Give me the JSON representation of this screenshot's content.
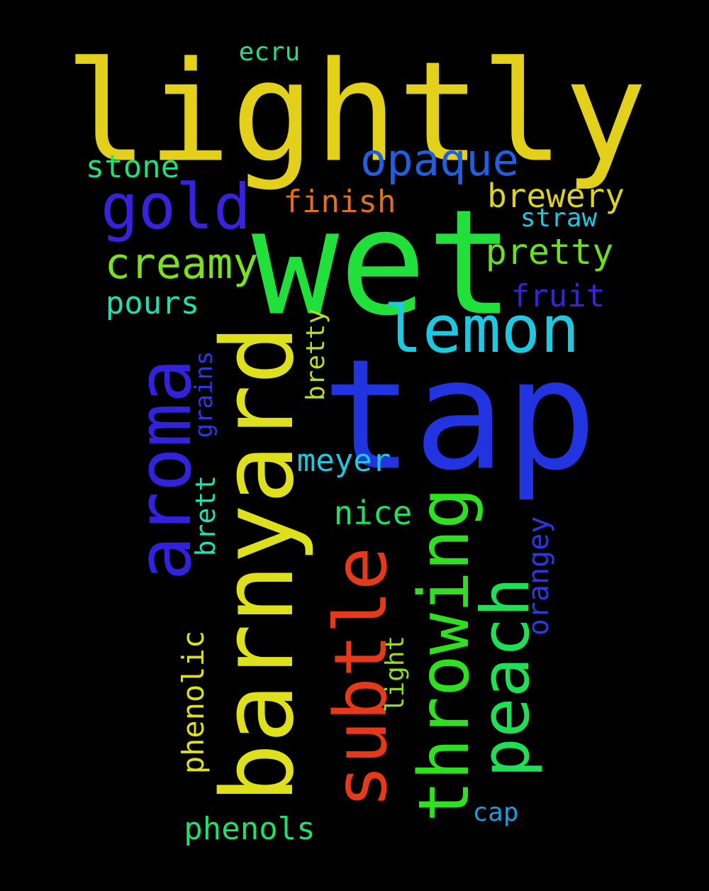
{
  "background": "#000000",
  "words": [
    {
      "text": "lightly",
      "color": "#e3d01a"
    },
    {
      "text": "wet",
      "color": "#22e03a"
    },
    {
      "text": "tap",
      "color": "#2233e0"
    },
    {
      "text": "barnyard",
      "color": "#dde01a"
    },
    {
      "text": "aroma",
      "color": "#3322dd"
    },
    {
      "text": "subtle",
      "color": "#e53a1a"
    },
    {
      "text": "throwing",
      "color": "#2ee01f"
    },
    {
      "text": "peach",
      "color": "#1fe055"
    },
    {
      "text": "lemon",
      "color": "#1ec8e0"
    },
    {
      "text": "gold",
      "color": "#3a22dd"
    },
    {
      "text": "opaque",
      "color": "#2060e0"
    },
    {
      "text": "creamy",
      "color": "#7ae01f"
    },
    {
      "text": "brewery",
      "color": "#dcd41a"
    },
    {
      "text": "pretty",
      "color": "#6be01f"
    },
    {
      "text": "finish",
      "color": "#e0701a"
    },
    {
      "text": "stone",
      "color": "#1fe07a"
    },
    {
      "text": "straw",
      "color": "#1ec8e0"
    },
    {
      "text": "fruit",
      "color": "#3a22dd"
    },
    {
      "text": "pours",
      "color": "#1fe0b0"
    },
    {
      "text": "ecru",
      "color": "#1fe08a"
    },
    {
      "text": "meyer",
      "color": "#1ec8e0"
    },
    {
      "text": "nice",
      "color": "#1fe060"
    },
    {
      "text": "bretty",
      "color": "#b8e01f"
    },
    {
      "text": "grains",
      "color": "#2a3ae0"
    },
    {
      "text": "brett",
      "color": "#1fe0b8"
    },
    {
      "text": "orangey",
      "color": "#2a3ae0"
    },
    {
      "text": "phenolic",
      "color": "#dde01a"
    },
    {
      "text": "light",
      "color": "#8ee01f"
    },
    {
      "text": "phenols",
      "color": "#1fe06a"
    },
    {
      "text": "cap",
      "color": "#1e9ce0"
    }
  ]
}
